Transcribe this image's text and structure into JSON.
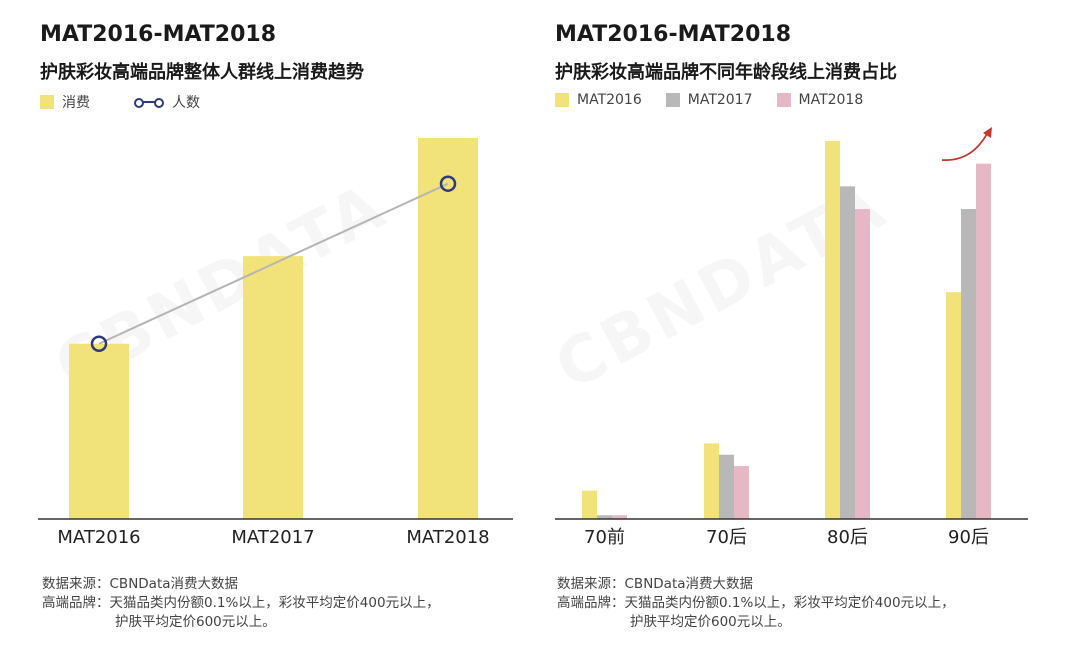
{
  "left": {
    "title_line1": "MAT2016-MAT2018",
    "title_line2": "护肤彩妆高端品牌整体人群线上消费趋势",
    "legend": [
      {
        "label": "消费",
        "color": "#f2e27a"
      },
      {
        "label": "人数",
        "color": "#2e3a7a"
      }
    ],
    "source_line": "数据来源：CBNData消费大数据",
    "brand_line1": "高端品牌：天猫品类内份额0.1%以上，彩妆平均定价400元以上，",
    "brand_line2": "护肤平均定价600元以上。"
  },
  "right": {
    "title_line1": "MAT2016-MAT2018",
    "title_line2": "护肤彩妆高端品牌不同年龄段线上消费占比",
    "legend": [
      {
        "label": "MAT2016",
        "color": "#f2e27a"
      },
      {
        "label": "MAT2017",
        "color": "#b8b8b8"
      },
      {
        "label": "MAT2018",
        "color": "#e6b8c6"
      }
    ],
    "source_line": "数据来源：CBNData消费大数据",
    "brand_line1": "高端品牌：天猫品类内份额0.1%以上，彩妆平均定价400元以上，",
    "brand_line2": "护肤平均定价600元以上。"
  },
  "watermark": "CBNDATA",
  "chart_data": [
    {
      "type": "bar",
      "title": "MAT2016-MAT2018 护肤彩妆高端品牌整体人群线上消费趋势",
      "categories": [
        "MAT2016",
        "MAT2017",
        "MAT2018"
      ],
      "series": [
        {
          "name": "消费",
          "type": "bar",
          "values": [
            46,
            69,
            100
          ],
          "color": "#f2e27a"
        },
        {
          "name": "人数",
          "type": "line",
          "values": [
            46,
            0,
            88
          ],
          "color": "#2e3a7a"
        }
      ],
      "line_points_index": [
        0,
        2
      ],
      "ylim": [
        0,
        100
      ],
      "grid": false,
      "legend_position": "top-left"
    },
    {
      "type": "bar",
      "title": "MAT2016-MAT2018 护肤彩妆高端品牌不同年龄段线上消费占比",
      "categories": [
        "70前",
        "70后",
        "80后",
        "90后"
      ],
      "series": [
        {
          "name": "MAT2016",
          "values": [
            7.5,
            20,
            100,
            60
          ],
          "color": "#f2e27a"
        },
        {
          "name": "MAT2017",
          "values": [
            1,
            17,
            88,
            82
          ],
          "color": "#b8b8b8"
        },
        {
          "name": "MAT2018",
          "values": [
            1,
            14,
            82,
            94
          ],
          "color": "#e6b8c6"
        }
      ],
      "ylim": [
        0,
        100
      ],
      "grid": false,
      "legend_position": "top-left",
      "annotation": "up-arrow over 90后"
    }
  ]
}
